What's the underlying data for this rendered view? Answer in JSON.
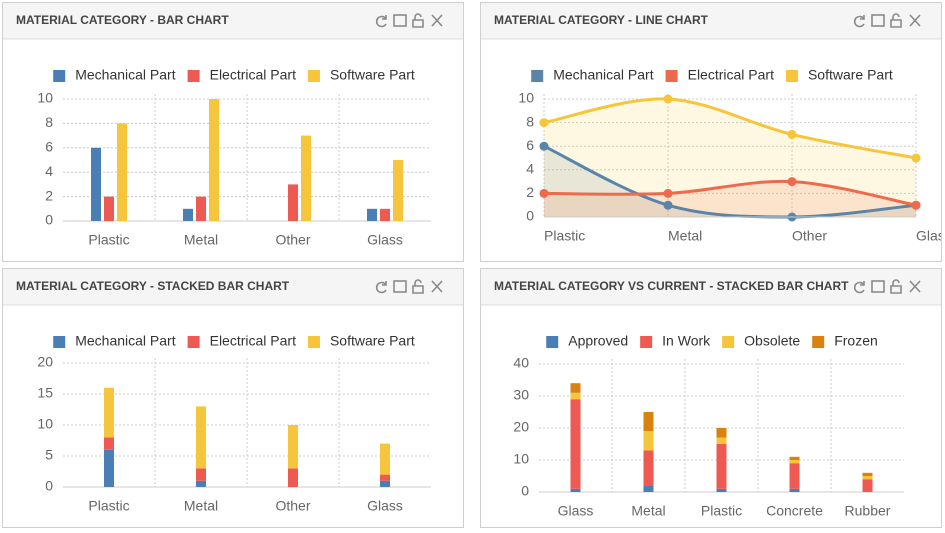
{
  "chart_data": [
    {
      "type": "bar",
      "title": "MATERIAL CATEGORY - BAR CHART",
      "categories": [
        "Plastic",
        "Metal",
        "Other",
        "Glass"
      ],
      "series": [
        {
          "name": "Mechanical Part",
          "color": "#4a7fb5",
          "values": [
            6,
            1,
            0,
            1
          ]
        },
        {
          "name": "Electrical Part",
          "color": "#ee5a52",
          "values": [
            2,
            2,
            3,
            1
          ]
        },
        {
          "name": "Software Part",
          "color": "#f5c63b",
          "values": [
            8,
            10,
            7,
            5
          ]
        }
      ],
      "ylim": [
        0,
        10
      ],
      "yticks": [
        0,
        2,
        4,
        6,
        8,
        10
      ],
      "grid": true
    },
    {
      "type": "line",
      "title": "MATERIAL CATEGORY - LINE CHART",
      "categories": [
        "Plastic",
        "Metal",
        "Other",
        "Glass"
      ],
      "series": [
        {
          "name": "Mechanical Part",
          "color": "#5a84a8",
          "values": [
            6,
            1,
            0,
            1
          ]
        },
        {
          "name": "Electrical Part",
          "color": "#ee6a4c",
          "values": [
            2,
            2,
            3,
            1
          ]
        },
        {
          "name": "Software Part",
          "color": "#f5c63b",
          "values": [
            8,
            10,
            7,
            5
          ]
        }
      ],
      "ylim": [
        0,
        10
      ],
      "yticks": [
        0,
        2,
        4,
        6,
        8,
        10
      ],
      "grid": true
    },
    {
      "type": "stacked_bar",
      "title": "MATERIAL CATEGORY - STACKED BAR CHART",
      "categories": [
        "Plastic",
        "Metal",
        "Other",
        "Glass"
      ],
      "series": [
        {
          "name": "Mechanical Part",
          "color": "#4a7fb5",
          "values": [
            6,
            1,
            0,
            1
          ]
        },
        {
          "name": "Electrical Part",
          "color": "#ee5a52",
          "values": [
            2,
            2,
            3,
            1
          ]
        },
        {
          "name": "Software Part",
          "color": "#f5c63b",
          "values": [
            8,
            10,
            7,
            5
          ]
        }
      ],
      "ylim": [
        0,
        20
      ],
      "yticks": [
        0,
        5,
        10,
        15,
        20
      ],
      "grid": true
    },
    {
      "type": "stacked_bar",
      "title": "MATERIAL CATEGORY VS CURRENT - STACKED BAR CHART",
      "categories": [
        "Glass",
        "Metal",
        "Plastic",
        "Concrete",
        "Rubber"
      ],
      "series": [
        {
          "name": "Approved",
          "color": "#4a7fb5",
          "values": [
            1,
            2,
            1,
            1,
            0
          ]
        },
        {
          "name": "In Work",
          "color": "#ee5a52",
          "values": [
            28,
            11,
            14,
            8,
            4
          ]
        },
        {
          "name": "Obsolete",
          "color": "#f5c63b",
          "values": [
            2,
            6,
            2,
            1,
            1
          ]
        },
        {
          "name": "Frozen",
          "color": "#d9820f",
          "values": [
            3,
            6,
            3,
            1,
            1
          ]
        }
      ],
      "ylim": [
        0,
        40
      ],
      "yticks": [
        0,
        10,
        20,
        30,
        40
      ],
      "grid": true
    }
  ]
}
